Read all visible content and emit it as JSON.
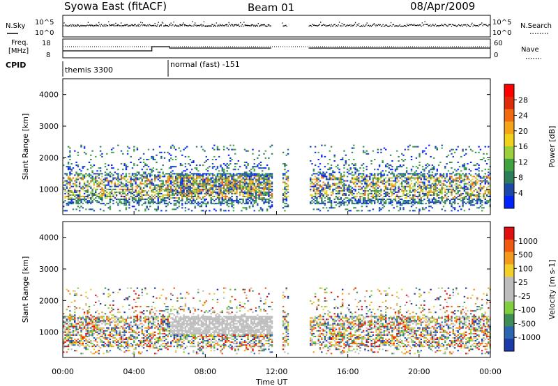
{
  "header": {
    "station": "Syowa East (fitACF)",
    "beam": "Beam 01",
    "date": "08/Apr/2009"
  },
  "noise_panel": {
    "left_label": "N.Sky",
    "right_label": "N.Search",
    "left_ticks": [
      "10^5",
      "10^0"
    ],
    "right_ticks": [
      "10^5",
      "10^0"
    ]
  },
  "freq_panel": {
    "left_label_1": "Freq.",
    "left_label_2": "[MHz]",
    "right_label": "Nave",
    "left_ticks": [
      "18",
      "8"
    ],
    "right_ticks": [
      "60",
      "0"
    ]
  },
  "cpid": {
    "label": "CPID",
    "segments": [
      "themis 3300",
      "normal (fast) -151"
    ]
  },
  "chart_data": [
    {
      "type": "heatmap",
      "name": "power",
      "ylabel": "Slant Range [km]",
      "yticks": [
        "4000",
        "3000",
        "2000",
        "1000"
      ],
      "ylim": [
        200,
        4500
      ],
      "colorbar": {
        "label": "Power [dB]",
        "ticks": [
          "28",
          "24",
          "20",
          "16",
          "12",
          "8",
          "4"
        ],
        "range": [
          0,
          30
        ]
      },
      "colors": [
        "#0022ff",
        "#1c48a8",
        "#2e7d5a",
        "#3fa342",
        "#9ccf3c",
        "#f0d21c",
        "#f5a41a",
        "#f26a10",
        "#e02a0c",
        "#ff0000"
      ],
      "data_gaps_ut": [
        [
          11.7,
          12.3
        ],
        [
          12.6,
          13.8
        ]
      ]
    },
    {
      "type": "heatmap",
      "name": "velocity",
      "ylabel": "Slant Range [km]",
      "yticks": [
        "4000",
        "3000",
        "2000",
        "1000"
      ],
      "ylim": [
        200,
        4500
      ],
      "colorbar": {
        "label": "Velocity [m s-1]",
        "ticks": [
          "1000",
          "500",
          "100",
          "25",
          "-25",
          "-100",
          "-500",
          "-1000"
        ],
        "range": [
          -1000,
          1000
        ]
      },
      "colors": [
        "#1a3aa8",
        "#2d66b0",
        "#3e8d56",
        "#7fcf3e",
        "#bdbdbd",
        "#bdbdbd",
        "#f3cf2a",
        "#f39a1c",
        "#ef5a10",
        "#e01010"
      ],
      "data_gaps_ut": [
        [
          11.7,
          12.3
        ],
        [
          12.6,
          13.8
        ]
      ]
    }
  ],
  "xaxis": {
    "label": "Time UT",
    "ticks": [
      "00:00",
      "04:00",
      "08:00",
      "12:00",
      "16:00",
      "20:00",
      "00:00"
    ]
  }
}
